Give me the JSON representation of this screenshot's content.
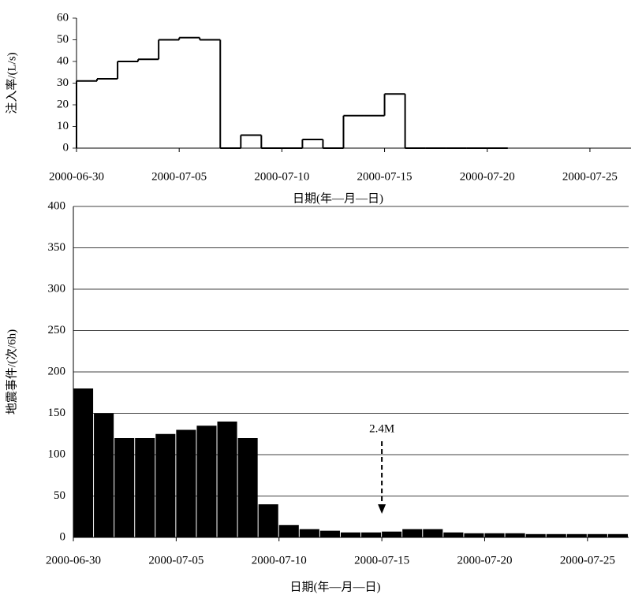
{
  "chart_data": [
    {
      "type": "line",
      "step": "post",
      "color": "#000000",
      "ylabel": "注入率/(L/s)",
      "xlabel": "日期(年—月—日)",
      "x": [
        "2000-06-30",
        "2000-07-01",
        "2000-07-02",
        "2000-07-03",
        "2000-07-04",
        "2000-07-05",
        "2000-07-06",
        "2000-07-07",
        "2000-07-08",
        "2000-07-09",
        "2000-07-10",
        "2000-07-11",
        "2000-07-12",
        "2000-07-13",
        "2000-07-14",
        "2000-07-15",
        "2000-07-16",
        "2000-07-17",
        "2000-07-18",
        "2000-07-19",
        "2000-07-20"
      ],
      "values": [
        31,
        32,
        40,
        41,
        50,
        51,
        50,
        0,
        6,
        0,
        0,
        4,
        0,
        15,
        15,
        25,
        0,
        0,
        0,
        0,
        0
      ],
      "xlim": [
        "2000-06-30",
        "2000-07-27"
      ],
      "xticks": [
        "2000-06-30",
        "2000-07-05",
        "2000-07-10",
        "2000-07-15",
        "2000-07-20",
        "2000-07-25"
      ],
      "ylim": [
        0,
        60
      ],
      "yticks": [
        0,
        10,
        20,
        30,
        40,
        50,
        60
      ],
      "grid": false
    },
    {
      "type": "bar",
      "color": "#000000",
      "ylabel": "地震事件/(次/6h)",
      "xlabel": "日期(年—月—日)",
      "x": [
        "2000-06-30",
        "2000-07-01",
        "2000-07-02",
        "2000-07-03",
        "2000-07-04",
        "2000-07-05",
        "2000-07-06",
        "2000-07-07",
        "2000-07-08",
        "2000-07-09",
        "2000-07-10",
        "2000-07-11",
        "2000-07-12",
        "2000-07-13",
        "2000-07-14",
        "2000-07-15",
        "2000-07-16",
        "2000-07-17",
        "2000-07-18",
        "2000-07-19",
        "2000-07-20",
        "2000-07-21",
        "2000-07-22",
        "2000-07-23",
        "2000-07-24",
        "2000-07-25",
        "2000-07-26"
      ],
      "values": [
        180,
        150,
        120,
        120,
        125,
        130,
        135,
        140,
        120,
        40,
        15,
        10,
        8,
        6,
        6,
        7,
        10,
        10,
        6,
        5,
        5,
        5,
        4,
        4,
        4,
        4,
        4
      ],
      "xlim": [
        "2000-06-30",
        "2000-07-27"
      ],
      "xticks": [
        "2000-06-30",
        "2000-07-05",
        "2000-07-10",
        "2000-07-15",
        "2000-07-20",
        "2000-07-25"
      ],
      "ylim": [
        0,
        400
      ],
      "yticks": [
        0,
        50,
        100,
        150,
        200,
        250,
        300,
        350,
        400
      ],
      "grid": true,
      "annotations": [
        {
          "text": "2.4M",
          "x": "2000-07-15"
        }
      ]
    }
  ]
}
